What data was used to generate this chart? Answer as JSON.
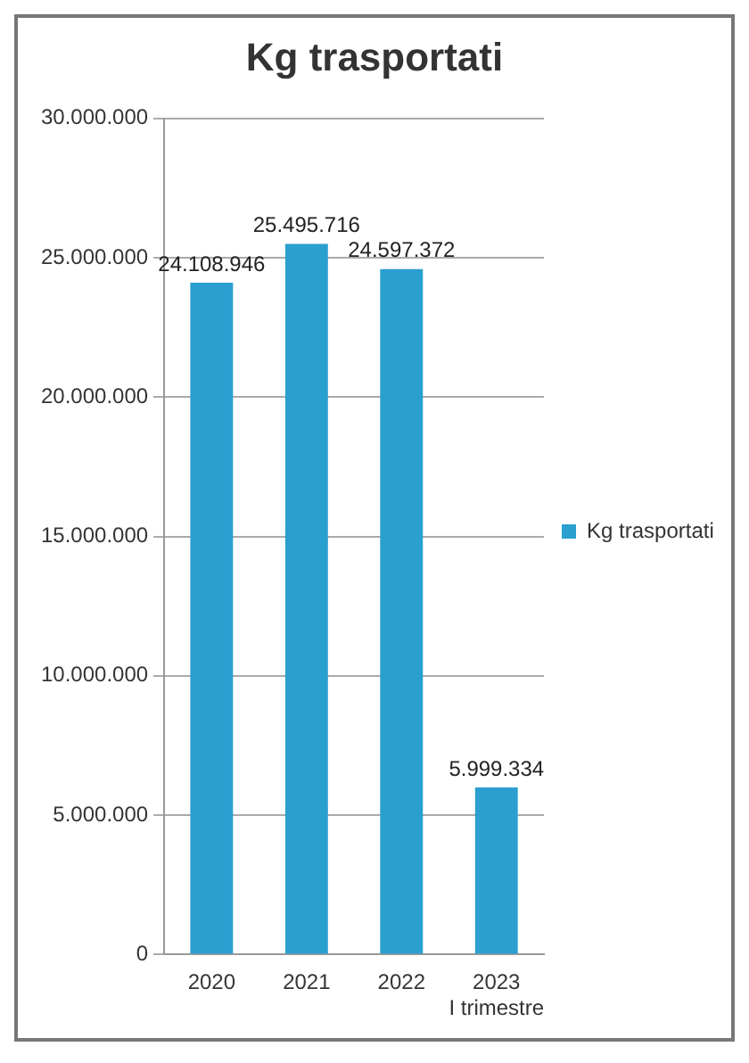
{
  "chart_data": {
    "type": "bar",
    "title": "Kg trasportati",
    "categories": [
      "2020",
      "2021",
      "2022",
      "2023\nI trimestre"
    ],
    "series": [
      {
        "name": "Kg trasportati",
        "color": "#2a9fd0",
        "values": [
          24108946,
          25495716,
          24597372,
          5999334
        ],
        "value_labels": [
          "24.108.946",
          "25.495.716",
          "24.597.372",
          "5.999.334"
        ]
      }
    ],
    "ylim": [
      0,
      30000000
    ],
    "yticks": [
      {
        "value": 0,
        "label": "0"
      },
      {
        "value": 5000000,
        "label": "5.000.000"
      },
      {
        "value": 10000000,
        "label": "10.000.000"
      },
      {
        "value": 15000000,
        "label": "15.000.000"
      },
      {
        "value": 20000000,
        "label": "20.000.000"
      },
      {
        "value": 25000000,
        "label": "25.000.000"
      },
      {
        "value": 30000000,
        "label": "30.000.000"
      }
    ],
    "grid": "y",
    "legend": "right"
  }
}
